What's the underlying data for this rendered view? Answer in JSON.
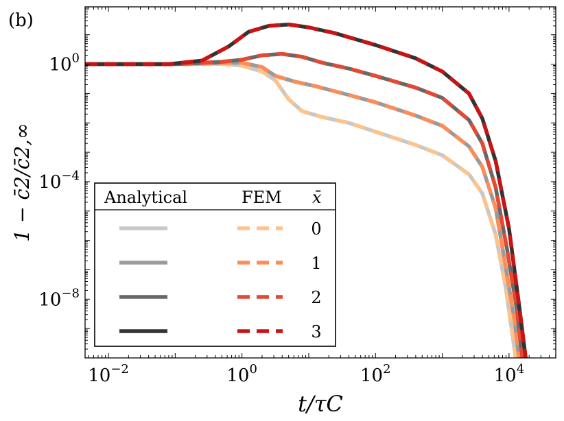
{
  "chart_data": {
    "type": "line",
    "panel_label": "(b)",
    "xlabel": "t/τC",
    "ylabel": "1 − c̄2/c̄2,∞",
    "xscale": "log",
    "yscale": "log",
    "xlim_log10": [
      -2.35,
      4.7
    ],
    "ylim_log10": [
      -10.0,
      1.95
    ],
    "x_ticks": [
      {
        "exp": -2,
        "label": "10",
        "sup": "−2"
      },
      {
        "exp": 0,
        "label": "10",
        "sup": "0"
      },
      {
        "exp": 2,
        "label": "10",
        "sup": "2"
      },
      {
        "exp": 4,
        "label": "10",
        "sup": "4"
      }
    ],
    "y_ticks": [
      {
        "exp": 0,
        "label": "10",
        "sup": "0"
      },
      {
        "exp": -4,
        "label": "10",
        "sup": "−4"
      },
      {
        "exp": -8,
        "label": "10",
        "sup": "−8"
      }
    ],
    "legend": {
      "headers": {
        "analytical": "Analytical",
        "fem": "FEM",
        "xbar": "x̄"
      },
      "placement": "lower-left"
    },
    "series": [
      {
        "xbar": "0",
        "analytical_color": "#c8c8c8",
        "fem_color": "#fdc38d",
        "points_log10": [
          [
            -2.35,
            0
          ],
          [
            -1.0,
            0
          ],
          [
            -0.3,
            0.01
          ],
          [
            0.0,
            -0.05
          ],
          [
            0.3,
            -0.25
          ],
          [
            0.5,
            -0.55
          ],
          [
            0.7,
            -1.2
          ],
          [
            0.9,
            -1.6
          ],
          [
            1.2,
            -1.8
          ],
          [
            1.6,
            -2.0
          ],
          [
            2.0,
            -2.3
          ],
          [
            2.6,
            -2.75
          ],
          [
            3.0,
            -3.1
          ],
          [
            3.4,
            -3.75
          ],
          [
            3.6,
            -4.4
          ],
          [
            3.8,
            -5.8
          ],
          [
            3.95,
            -7.6
          ],
          [
            4.05,
            -9.2
          ],
          [
            4.1,
            -10
          ]
        ]
      },
      {
        "xbar": "1",
        "analytical_color": "#9a9a9a",
        "fem_color": "#fc8d59",
        "points_log10": [
          [
            -2.35,
            0
          ],
          [
            -1.0,
            0
          ],
          [
            -0.3,
            0.04
          ],
          [
            0.0,
            0.05
          ],
          [
            0.3,
            -0.1
          ],
          [
            0.5,
            -0.4
          ],
          [
            0.8,
            -0.6
          ],
          [
            1.1,
            -0.75
          ],
          [
            1.6,
            -1.05
          ],
          [
            2.0,
            -1.3
          ],
          [
            2.6,
            -1.75
          ],
          [
            3.0,
            -2.1
          ],
          [
            3.4,
            -2.8
          ],
          [
            3.6,
            -3.5
          ],
          [
            3.8,
            -4.9
          ],
          [
            3.95,
            -6.9
          ],
          [
            4.08,
            -8.7
          ],
          [
            4.15,
            -10
          ]
        ]
      },
      {
        "xbar": "2",
        "analytical_color": "#686868",
        "fem_color": "#e34a33",
        "points_log10": [
          [
            -2.35,
            0
          ],
          [
            -1.0,
            0
          ],
          [
            -0.3,
            0.08
          ],
          [
            0.0,
            0.15
          ],
          [
            0.3,
            0.3
          ],
          [
            0.6,
            0.35
          ],
          [
            0.9,
            0.25
          ],
          [
            1.2,
            0.05
          ],
          [
            1.6,
            -0.15
          ],
          [
            2.0,
            -0.4
          ],
          [
            2.6,
            -0.8
          ],
          [
            3.0,
            -1.15
          ],
          [
            3.4,
            -1.9
          ],
          [
            3.6,
            -2.7
          ],
          [
            3.8,
            -4.2
          ],
          [
            3.97,
            -6.3
          ],
          [
            4.12,
            -8.4
          ],
          [
            4.2,
            -10
          ]
        ]
      },
      {
        "xbar": "3",
        "analytical_color": "#333333",
        "fem_color": "#c81414",
        "points_log10": [
          [
            -2.35,
            0
          ],
          [
            -1.1,
            0
          ],
          [
            -0.6,
            0.12
          ],
          [
            -0.2,
            0.6
          ],
          [
            0.1,
            1.1
          ],
          [
            0.4,
            1.3
          ],
          [
            0.7,
            1.35
          ],
          [
            1.0,
            1.25
          ],
          [
            1.4,
            1.05
          ],
          [
            2.0,
            0.65
          ],
          [
            2.6,
            0.2
          ],
          [
            3.0,
            -0.25
          ],
          [
            3.4,
            -1.0
          ],
          [
            3.6,
            -1.85
          ],
          [
            3.8,
            -3.3
          ],
          [
            4.0,
            -5.6
          ],
          [
            4.15,
            -8.2
          ],
          [
            4.25,
            -10
          ]
        ]
      }
    ]
  }
}
